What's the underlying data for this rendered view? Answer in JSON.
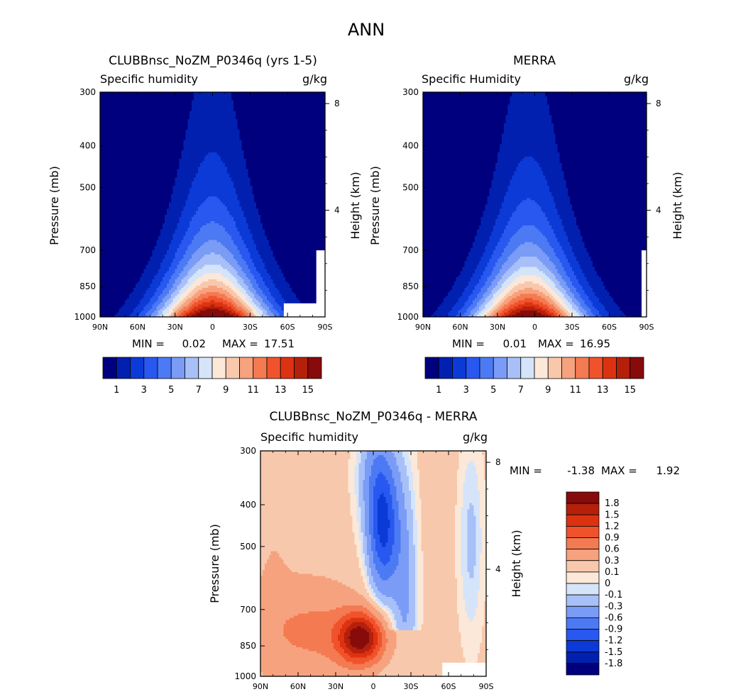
{
  "page_title": "ANN",
  "palettes": {
    "full": [
      "#00007f",
      "#0220b0",
      "#0c3ad6",
      "#2958f0",
      "#4c7af4",
      "#7a9cf6",
      "#a8c0f8",
      "#d6e4fa",
      "#fbe8d8",
      "#f8c8ac",
      "#f6a27e",
      "#f47a52",
      "#f0532c",
      "#dd3212",
      "#b4200a",
      "#870b0b"
    ],
    "diff": [
      "#00007f",
      "#0220b0",
      "#0c3ad6",
      "#2958f0",
      "#4c7af4",
      "#7a9cf6",
      "#a8c0f8",
      "#d6e4fa",
      "#fbe8d8",
      "#f8c8ac",
      "#f6a27e",
      "#f47a52",
      "#f0532c",
      "#dd3212",
      "#b4200a",
      "#870b0b"
    ]
  },
  "chart_data": [
    {
      "type": "heatmap",
      "title": "CLUBBnsc_NoZM_P0346q (yrs 1-5)",
      "subtitle_left": "Specific humidity",
      "subtitle_right": "g/kg",
      "xlabel": "",
      "ylabel": "Pressure (mb)",
      "y2label": "Height (km)",
      "x_ticks": [
        "90N",
        "60N",
        "30N",
        "0",
        "30S",
        "60S",
        "90S"
      ],
      "y_ticks": [
        "300",
        "400",
        "500",
        "700",
        "850",
        "1000"
      ],
      "y2_ticks": [
        "8",
        "4"
      ],
      "xlim": [
        90,
        -90
      ],
      "ylim": [
        1000,
        300
      ],
      "stats": {
        "min_label": "MIN =",
        "min": "0.02",
        "max_label": "MAX =",
        "max": "17.51"
      },
      "peak_lat": 0,
      "top_pressure": 420,
      "peak_value": 17.51,
      "masked_box": {
        "lat": [
          -57,
          -90
        ],
        "p": [
          930,
          1000
        ]
      },
      "masked_strip": {
        "lat": [
          -83,
          -90
        ],
        "p": [
          700,
          1000
        ]
      },
      "colorbar": {
        "labels": [
          "1",
          "3",
          "5",
          "7",
          "9",
          "11",
          "13",
          "15"
        ],
        "levels": 15
      }
    },
    {
      "type": "heatmap",
      "title": "MERRA",
      "subtitle_left": "Specific Humidity",
      "subtitle_right": "g/kg",
      "xlabel": "",
      "ylabel": "Pressure (mb)",
      "y2label": "Height (km)",
      "x_ticks": [
        "90N",
        "60N",
        "30N",
        "0",
        "30S",
        "60S",
        "90S"
      ],
      "y_ticks": [
        "300",
        "400",
        "500",
        "700",
        "850",
        "1000"
      ],
      "y2_ticks": [
        "8",
        "4"
      ],
      "xlim": [
        90,
        -90
      ],
      "ylim": [
        1000,
        300
      ],
      "stats": {
        "min_label": "MIN =",
        "min": "0.01",
        "max_label": "MAX =",
        "max": "16.95"
      },
      "peak_lat": 5,
      "top_pressure": 390,
      "peak_value": 16.95,
      "masked_box": null,
      "masked_strip": {
        "lat": [
          -86,
          -90
        ],
        "p": [
          700,
          1000
        ]
      },
      "colorbar": {
        "labels": [
          "1",
          "3",
          "5",
          "7",
          "9",
          "11",
          "13",
          "15"
        ],
        "levels": 15
      }
    },
    {
      "type": "heatmap",
      "title": "CLUBBnsc_NoZM_P0346q - MERRA",
      "subtitle_left": "Specific humidity",
      "subtitle_right": "g/kg",
      "xlabel": "",
      "ylabel": "Pressure (mb)",
      "y2label": "Height (km)",
      "x_ticks": [
        "90N",
        "60N",
        "30N",
        "0",
        "30S",
        "60S",
        "90S"
      ],
      "y_ticks": [
        "300",
        "400",
        "500",
        "700",
        "850",
        "1000"
      ],
      "y2_ticks": [
        "8",
        "4"
      ],
      "xlim": [
        90,
        -90
      ],
      "ylim": [
        1000,
        300
      ],
      "stats": {
        "min_label": "MIN =",
        "min": "-1.38",
        "max_label": "MAX =",
        "max": "1.92"
      },
      "masked_box": {
        "lat": [
          -55,
          -90
        ],
        "p": [
          930,
          1000
        ]
      },
      "colorbar": {
        "labels": [
          "1.8",
          "1.5",
          "1.2",
          "0.9",
          "0.6",
          "0.3",
          "0.1",
          "0",
          "-0.1",
          "-0.3",
          "-0.6",
          "-0.9",
          "-1.2",
          "-1.5",
          "-1.8"
        ]
      }
    }
  ]
}
